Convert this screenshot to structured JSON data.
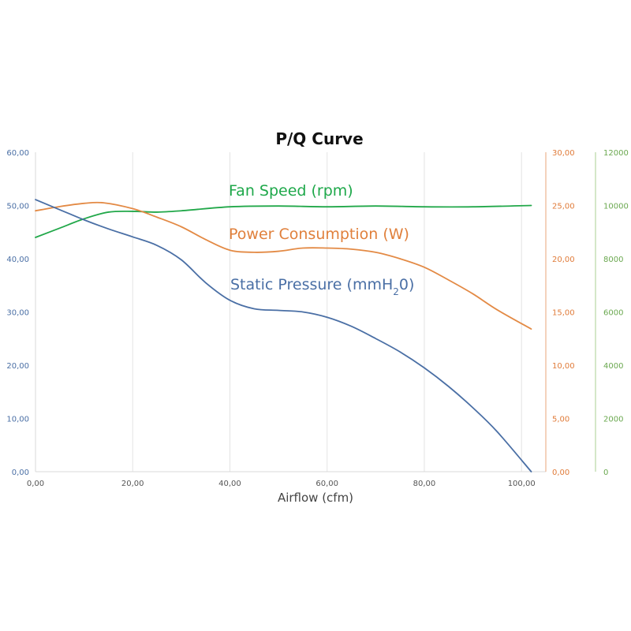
{
  "chart_data": {
    "type": "line",
    "title": "P/Q Curve",
    "xlabel": "Airflow (cfm)",
    "xlim": [
      0,
      105
    ],
    "x_ticks": [
      "0,00",
      "20,00",
      "40,00",
      "60,00",
      "80,00",
      "100,00"
    ],
    "x_tick_values": [
      0,
      20,
      40,
      60,
      80,
      100
    ],
    "axes": {
      "left": {
        "range": [
          0,
          60
        ],
        "tick_values": [
          0,
          10,
          20,
          30,
          40,
          50,
          60
        ],
        "tick_labels": [
          "0,00",
          "10,00",
          "20,00",
          "30,00",
          "40,00",
          "50,00",
          "60,00"
        ],
        "color": "#4a6fa5"
      },
      "right1": {
        "range": [
          0,
          30
        ],
        "tick_values": [
          0,
          5,
          10,
          15,
          20,
          25,
          30
        ],
        "tick_labels": [
          "0,00",
          "5,00",
          "10,00",
          "15,00",
          "20,00",
          "25,00",
          "30,00"
        ],
        "color": "#e07b39"
      },
      "right2": {
        "range": [
          0,
          12000
        ],
        "tick_values": [
          0,
          2000,
          4000,
          6000,
          8000,
          10000,
          12000
        ],
        "tick_labels": [
          "0",
          "2000",
          "4000",
          "6000",
          "8000",
          "10000",
          "12000"
        ],
        "color": "#6aa84f"
      }
    },
    "grid": {
      "vertical": true,
      "horizontal": false
    },
    "series": [
      {
        "name": "Fan Speed (rpm)",
        "name_parts": [
          "Fan Speed (rpm)"
        ],
        "axis": "right2",
        "color": "#22a84a",
        "label_color": "#1ea84a",
        "x": [
          0,
          5,
          10,
          15,
          20,
          25,
          30,
          40,
          50,
          60,
          70,
          80,
          90,
          102
        ],
        "y": [
          8800,
          9150,
          9500,
          9750,
          9780,
          9750,
          9800,
          9950,
          9980,
          9950,
          9980,
          9950,
          9950,
          10000
        ]
      },
      {
        "name": "Power Consumption (W)",
        "name_parts": [
          "Power Consumption (W)"
        ],
        "axis": "right1",
        "color": "#e38a45",
        "label_color": "#e0803c",
        "x": [
          0,
          5,
          10,
          14,
          20,
          25,
          30,
          35,
          40,
          45,
          50,
          55,
          60,
          65,
          70,
          75,
          80,
          85,
          90,
          95,
          102
        ],
        "y": [
          24.5,
          24.9,
          25.2,
          25.25,
          24.7,
          23.9,
          23.0,
          21.8,
          20.8,
          20.6,
          20.7,
          21.0,
          21.0,
          20.9,
          20.6,
          20.0,
          19.2,
          18.0,
          16.7,
          15.2,
          13.4
        ]
      },
      {
        "name": "Static Pressure (mmH20)",
        "name_parts": [
          "Static Pressure (mmH",
          "2",
          "0)"
        ],
        "axis": "left",
        "color": "#4a6fa5",
        "label_color": "#4a6fa5",
        "x": [
          0,
          5,
          10,
          15,
          20,
          25,
          30,
          35,
          40,
          45,
          50,
          55,
          60,
          65,
          70,
          75,
          80,
          85,
          90,
          95,
          102
        ],
        "y": [
          51.1,
          49.2,
          47.3,
          45.6,
          44.1,
          42.5,
          39.8,
          35.5,
          32.2,
          30.6,
          30.3,
          30.0,
          29.0,
          27.3,
          25.0,
          22.5,
          19.5,
          16.0,
          12.0,
          7.5,
          0.0
        ]
      }
    ]
  }
}
